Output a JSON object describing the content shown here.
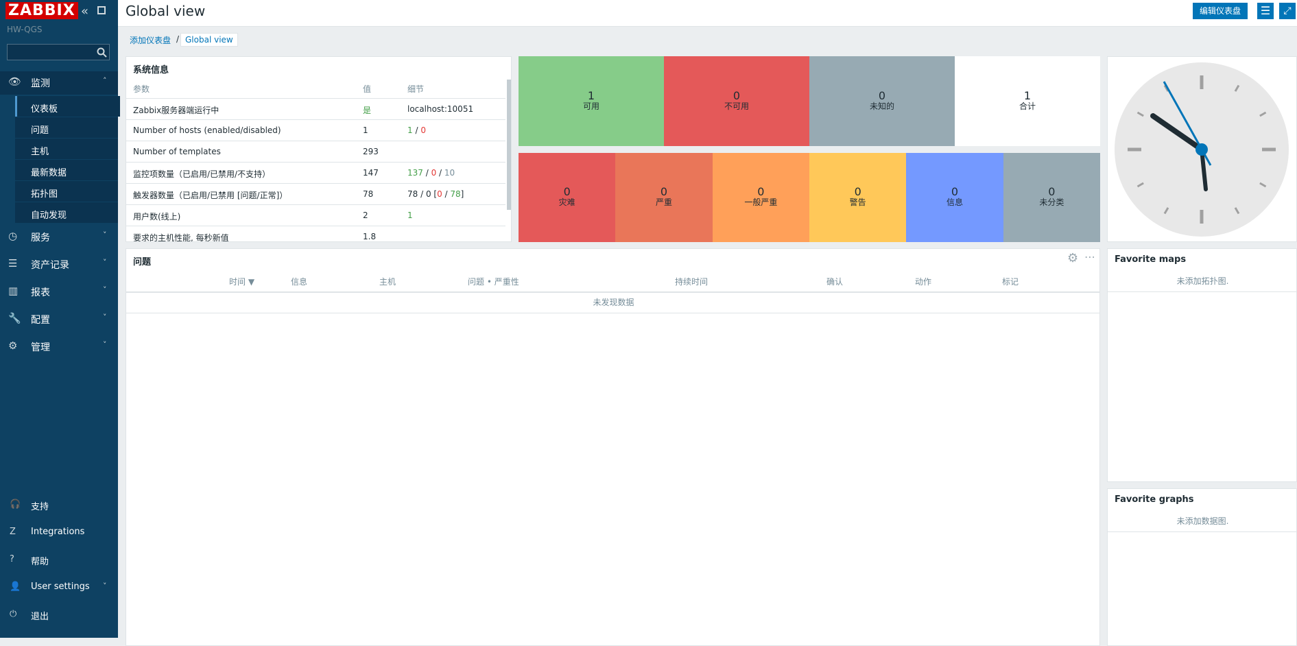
{
  "sidebar": {
    "logo": "ZABBIX",
    "server": "HW-QGS",
    "menu": [
      {
        "label": "监测",
        "children": [
          "仪表板",
          "问题",
          "主机",
          "最新数据",
          "拓扑图",
          "自动发现"
        ]
      },
      {
        "label": "服务"
      },
      {
        "label": "资产记录"
      },
      {
        "label": "报表"
      },
      {
        "label": "配置"
      },
      {
        "label": "管理"
      }
    ],
    "bottom": [
      "支持",
      "Integrations",
      "帮助",
      "User settings",
      "退出"
    ]
  },
  "header": {
    "title": "Global view",
    "edit_button": "编辑仪表盘"
  },
  "breadcrumb": [
    "添加仪表盘",
    "Global view"
  ],
  "system_info": {
    "title": "系统信息",
    "columns": [
      "参数",
      "值",
      "细节"
    ],
    "rows": [
      {
        "param": "Zabbix服务器端运行中",
        "value": "是",
        "value_color": "#429e47",
        "details": [
          {
            "text": "localhost:10051"
          }
        ]
      },
      {
        "param": "Number of hosts (enabled/disabled)",
        "value": "1",
        "details": [
          {
            "text": "1",
            "color": "#429e47"
          },
          {
            "text": " / "
          },
          {
            "text": "0",
            "color": "#e33734"
          }
        ]
      },
      {
        "param": "Number of templates",
        "value": "293",
        "details": []
      },
      {
        "param": "监控项数量（已启用/已禁用/不支持）",
        "value": "147",
        "details": [
          {
            "text": "137",
            "color": "#429e47"
          },
          {
            "text": " / "
          },
          {
            "text": "0",
            "color": "#e33734"
          },
          {
            "text": " / "
          },
          {
            "text": "10",
            "color": "#768d99"
          }
        ]
      },
      {
        "param": "触发器数量（已启用/已禁用 [问题/正常]）",
        "value": "78",
        "details": [
          {
            "text": "78 / 0 ["
          },
          {
            "text": "0",
            "color": "#e33734"
          },
          {
            "text": " / "
          },
          {
            "text": "78",
            "color": "#429e47"
          },
          {
            "text": "]"
          }
        ]
      },
      {
        "param": "用户数(线上)",
        "value": "2",
        "details": [
          {
            "text": "1",
            "color": "#429e47"
          }
        ]
      },
      {
        "param": "要求的主机性能, 每秒新值",
        "value": "1.8",
        "details": []
      }
    ]
  },
  "host_availability": [
    {
      "count": 1,
      "label": "可用",
      "color": "#86cc89"
    },
    {
      "count": 0,
      "label": "不可用",
      "color": "#e45959"
    },
    {
      "count": 0,
      "label": "未知的",
      "color": "#97aab3"
    },
    {
      "count": 1,
      "label": "合计",
      "color": "#ffffff"
    }
  ],
  "problems_by_severity": [
    {
      "count": 0,
      "label": "灾难",
      "color": "#e45959"
    },
    {
      "count": 0,
      "label": "严重",
      "color": "#e97659"
    },
    {
      "count": 0,
      "label": "一般严重",
      "color": "#ffa059"
    },
    {
      "count": 0,
      "label": "警告",
      "color": "#ffc859"
    },
    {
      "count": 0,
      "label": "信息",
      "color": "#7499ff"
    },
    {
      "count": 0,
      "label": "未分类",
      "color": "#97aab3"
    }
  ],
  "problems": {
    "title": "问题",
    "columns": [
      "时间 ▼",
      "信息",
      "主机",
      "问题 • 严重性",
      "持续时间",
      "确认",
      "动作",
      "标记"
    ],
    "empty": "未发现数据"
  },
  "favorite_maps": {
    "title": "Favorite maps",
    "empty": "未添加拓扑图."
  },
  "favorite_graphs": {
    "title": "Favorite graphs",
    "empty": "未添加数据图."
  }
}
